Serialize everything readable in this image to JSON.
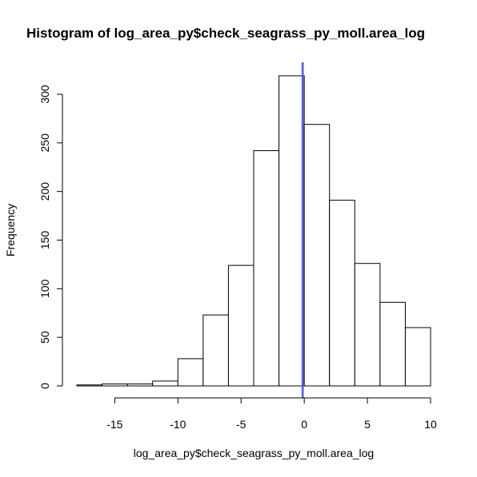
{
  "chart_data": {
    "type": "bar",
    "title": "Histogram of log_area_py$check_seagrass_py_moll.area_log",
    "xlabel": "log_area_py$check_seagrass_py_moll.area_log",
    "ylabel": "Frequency",
    "xlim": [
      -18,
      10
    ],
    "ylim": [
      0,
      300
    ],
    "x_ticks": [
      -15,
      -10,
      -5,
      0,
      5,
      10
    ],
    "y_ticks": [
      0,
      50,
      100,
      150,
      200,
      250,
      300
    ],
    "bins": [
      {
        "x0": -18,
        "x1": -16,
        "count": 1
      },
      {
        "x0": -16,
        "x1": -14,
        "count": 2
      },
      {
        "x0": -14,
        "x1": -12,
        "count": 2
      },
      {
        "x0": -12,
        "x1": -10,
        "count": 5
      },
      {
        "x0": -10,
        "x1": -8,
        "count": 28
      },
      {
        "x0": -8,
        "x1": -6,
        "count": 73
      },
      {
        "x0": -6,
        "x1": -4,
        "count": 124
      },
      {
        "x0": -4,
        "x1": -2,
        "count": 242
      },
      {
        "x0": -2,
        "x1": 0,
        "count": 319
      },
      {
        "x0": 0,
        "x1": 2,
        "count": 269
      },
      {
        "x0": 2,
        "x1": 4,
        "count": 191
      },
      {
        "x0": 4,
        "x1": 6,
        "count": 126
      },
      {
        "x0": 6,
        "x1": 8,
        "count": 86
      },
      {
        "x0": 8,
        "x1": 10,
        "count": 60
      }
    ],
    "vlines": [
      {
        "x": -0.1,
        "color": "#8a3ad8"
      },
      {
        "x": -0.15,
        "color": "#3d5fe0"
      }
    ],
    "grid": false,
    "legend": "none"
  }
}
